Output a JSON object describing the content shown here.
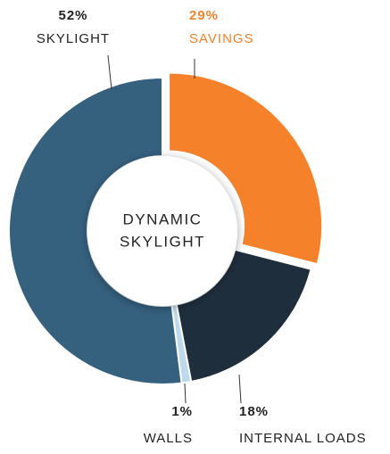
{
  "chart_data": {
    "type": "donut",
    "center_label": [
      "DYNAMIC",
      "SKYLIGHT"
    ],
    "categories": [
      "SAVINGS",
      "INTERNAL LOADS",
      "WALLS",
      "SKYLIGHT"
    ],
    "values": [
      29,
      18,
      1,
      52
    ],
    "value_labels": [
      "29%",
      "18%",
      "1%",
      "52%"
    ],
    "colors": [
      "#f5822a",
      "#1f2e3d",
      "#bcd9ee",
      "#35607e"
    ]
  }
}
